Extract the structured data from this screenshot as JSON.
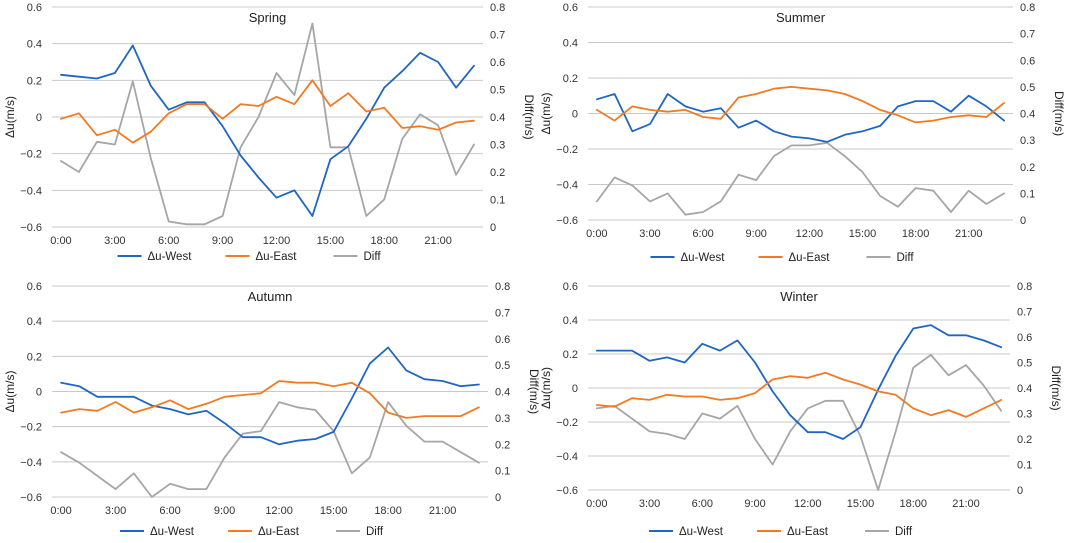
{
  "chart_data": [
    {
      "type": "line",
      "title": "Spring",
      "xlabel": "",
      "ylabel": "Δu(m/s)",
      "y2label": "Diff(m/s)",
      "x": [
        0,
        1,
        2,
        3,
        4,
        5,
        6,
        7,
        8,
        9,
        10,
        11,
        12,
        13,
        14,
        15,
        16,
        17,
        18,
        19,
        20,
        21,
        22,
        23
      ],
      "x_tick_labels": [
        "0:00",
        "3:00",
        "6:00",
        "9:00",
        "12:00",
        "15:00",
        "18:00",
        "21:00"
      ],
      "ylim": [
        -0.6,
        0.6
      ],
      "y_ticks": [
        "0.6",
        "0.4",
        "0.2",
        "0",
        "-0.2",
        "-0.4",
        "-0.6"
      ],
      "y2lim": [
        0,
        0.8
      ],
      "y2_ticks": [
        "0.8",
        "0.7",
        "0.6",
        "0.5",
        "0.4",
        "0.3",
        "0.2",
        "0.1",
        "0"
      ],
      "series": [
        {
          "name": "Δu-West",
          "axis": "left",
          "color": "#1f66c4",
          "values": [
            0.23,
            0.22,
            0.21,
            0.24,
            0.39,
            0.17,
            0.04,
            0.08,
            0.08,
            -0.05,
            -0.21,
            -0.33,
            -0.44,
            -0.4,
            -0.54,
            -0.23,
            -0.16,
            -0.01,
            0.16,
            0.25,
            0.35,
            0.3,
            0.16,
            0.28
          ]
        },
        {
          "name": "Δu-East",
          "axis": "left",
          "color": "#f27a22",
          "values": [
            -0.01,
            0.02,
            -0.1,
            -0.07,
            -0.14,
            -0.08,
            0.02,
            0.07,
            0.07,
            -0.01,
            0.07,
            0.06,
            0.11,
            0.07,
            0.2,
            0.06,
            0.13,
            0.03,
            0.05,
            -0.06,
            -0.05,
            -0.07,
            -0.03,
            -0.02
          ]
        },
        {
          "name": "Diff",
          "axis": "right",
          "color": "#a6a6a6",
          "values": [
            0.24,
            0.2,
            0.31,
            0.3,
            0.53,
            0.25,
            0.02,
            0.01,
            0.01,
            0.04,
            0.29,
            0.4,
            0.56,
            0.48,
            0.74,
            0.29,
            0.29,
            0.04,
            0.1,
            0.32,
            0.41,
            0.37,
            0.19,
            0.3
          ]
        }
      ],
      "legend": [
        "Δu-West",
        "Δu-East",
        "Diff"
      ],
      "legend_position": "bottom"
    },
    {
      "type": "line",
      "title": "Summer",
      "xlabel": "",
      "ylabel": "Δu(m/s)",
      "y2label": "Diff(m/s)",
      "x": [
        0,
        1,
        2,
        3,
        4,
        5,
        6,
        7,
        8,
        9,
        10,
        11,
        12,
        13,
        14,
        15,
        16,
        17,
        18,
        19,
        20,
        21,
        22,
        23
      ],
      "x_tick_labels": [
        "0:00",
        "3:00",
        "6:00",
        "9:00",
        "12:00",
        "15:00",
        "18:00",
        "21:00"
      ],
      "ylim": [
        -0.6,
        0.6
      ],
      "y_ticks": [
        "0.6",
        "0.4",
        "0.2",
        "0",
        "-0.2",
        "-0.4",
        "-0.6"
      ],
      "y2lim": [
        0,
        0.8
      ],
      "y2_ticks": [
        "0.8",
        "0.7",
        "0.6",
        "0.5",
        "0.4",
        "0.3",
        "0.2",
        "0.1",
        "0"
      ],
      "series": [
        {
          "name": "Δu-West",
          "axis": "left",
          "color": "#1f66c4",
          "values": [
            0.08,
            0.11,
            -0.1,
            -0.06,
            0.11,
            0.04,
            0.01,
            0.03,
            -0.08,
            -0.04,
            -0.1,
            -0.13,
            -0.14,
            -0.16,
            -0.12,
            -0.1,
            -0.07,
            0.04,
            0.07,
            0.07,
            0.01,
            0.1,
            0.04,
            -0.04
          ]
        },
        {
          "name": "Δu-East",
          "axis": "left",
          "color": "#f27a22",
          "values": [
            0.02,
            -0.04,
            0.04,
            0.02,
            0.01,
            0.02,
            -0.02,
            -0.03,
            0.09,
            0.11,
            0.14,
            0.15,
            0.14,
            0.13,
            0.11,
            0.07,
            0.02,
            -0.01,
            -0.05,
            -0.04,
            -0.02,
            -0.01,
            -0.02,
            0.06
          ]
        },
        {
          "name": "Diff",
          "axis": "right",
          "color": "#a6a6a6",
          "values": [
            0.07,
            0.16,
            0.13,
            0.07,
            0.1,
            0.02,
            0.03,
            0.07,
            0.17,
            0.15,
            0.24,
            0.28,
            0.28,
            0.29,
            0.24,
            0.18,
            0.09,
            0.05,
            0.12,
            0.11,
            0.03,
            0.11,
            0.06,
            0.1
          ]
        }
      ],
      "legend": [
        "Δu-West",
        "Δu-East",
        "Diff"
      ],
      "legend_position": "bottom"
    },
    {
      "type": "line",
      "title": "Autumn",
      "xlabel": "",
      "ylabel": "Δu(m/s)",
      "y2label": "Diff(m/s)",
      "x": [
        0,
        1,
        2,
        3,
        4,
        5,
        6,
        7,
        8,
        9,
        10,
        11,
        12,
        13,
        14,
        15,
        16,
        17,
        18,
        19,
        20,
        21,
        22,
        23
      ],
      "x_tick_labels": [
        "0:00",
        "3:00",
        "6:00",
        "9:00",
        "12:00",
        "15:00",
        "18:00",
        "21:00"
      ],
      "ylim": [
        -0.6,
        0.6
      ],
      "y_ticks": [
        "0.6",
        "0.4",
        "0.2",
        "0",
        "-0.2",
        "-0.4",
        "-0.6"
      ],
      "y2lim": [
        0,
        0.8
      ],
      "y2_ticks": [
        "0.8",
        "0.7",
        "0.6",
        "0.5",
        "0.4",
        "0.3",
        "0.2",
        "0.1",
        "0"
      ],
      "series": [
        {
          "name": "Δu-West",
          "axis": "left",
          "color": "#1f66c4",
          "values": [
            0.05,
            0.03,
            -0.03,
            -0.03,
            -0.03,
            -0.08,
            -0.1,
            -0.13,
            -0.11,
            -0.18,
            -0.26,
            -0.26,
            -0.3,
            -0.28,
            -0.27,
            -0.23,
            -0.04,
            0.16,
            0.25,
            0.12,
            0.07,
            0.06,
            0.03,
            0.04
          ]
        },
        {
          "name": "Δu-East",
          "axis": "left",
          "color": "#f27a22",
          "values": [
            -0.12,
            -0.1,
            -0.11,
            -0.06,
            -0.12,
            -0.09,
            -0.05,
            -0.1,
            -0.07,
            -0.03,
            -0.02,
            -0.01,
            0.06,
            0.05,
            0.05,
            0.03,
            0.05,
            -0.01,
            -0.12,
            -0.15,
            -0.14,
            -0.14,
            -0.14,
            -0.09
          ]
        },
        {
          "name": "Diff",
          "axis": "right",
          "color": "#a6a6a6",
          "values": [
            0.17,
            0.13,
            0.08,
            0.03,
            0.09,
            0.0,
            0.05,
            0.03,
            0.03,
            0.15,
            0.24,
            0.25,
            0.36,
            0.34,
            0.33,
            0.25,
            0.09,
            0.15,
            0.36,
            0.27,
            0.21,
            0.21,
            0.17,
            0.13
          ]
        }
      ],
      "legend": [
        "Δu-West",
        "Δu-East",
        "Diff"
      ],
      "legend_position": "bottom"
    },
    {
      "type": "line",
      "title": "Winter",
      "xlabel": "",
      "ylabel": "Δu(m/s)",
      "y2label": "Diff(m/s)",
      "x": [
        0,
        1,
        2,
        3,
        4,
        5,
        6,
        7,
        8,
        9,
        10,
        11,
        12,
        13,
        14,
        15,
        16,
        17,
        18,
        19,
        20,
        21,
        22,
        23
      ],
      "x_tick_labels": [
        "0:00",
        "3:00",
        "6:00",
        "9:00",
        "12:00",
        "15:00",
        "18:00",
        "21:00"
      ],
      "ylim": [
        -0.6,
        0.6
      ],
      "y_ticks": [
        "0.6",
        "0.4",
        "0.2",
        "0",
        "-0.2",
        "-0.4",
        "-0.6"
      ],
      "y2lim": [
        0,
        0.8
      ],
      "y2_ticks": [
        "0.8",
        "0.7",
        "0.6",
        "0.5",
        "0.4",
        "0.3",
        "0.2",
        "0.1",
        "0"
      ],
      "series": [
        {
          "name": "Δu-West",
          "axis": "left",
          "color": "#1f66c4",
          "values": [
            0.22,
            0.22,
            0.22,
            0.16,
            0.18,
            0.15,
            0.26,
            0.22,
            0.28,
            0.15,
            -0.02,
            -0.16,
            -0.26,
            -0.26,
            -0.3,
            -0.23,
            -0.01,
            0.19,
            0.35,
            0.37,
            0.31,
            0.31,
            0.28,
            0.24
          ]
        },
        {
          "name": "Δu-East",
          "axis": "left",
          "color": "#f27a22",
          "values": [
            -0.1,
            -0.11,
            -0.06,
            -0.07,
            -0.04,
            -0.05,
            -0.05,
            -0.07,
            -0.06,
            -0.03,
            0.05,
            0.07,
            0.06,
            0.09,
            0.05,
            0.02,
            -0.02,
            -0.04,
            -0.12,
            -0.16,
            -0.13,
            -0.17,
            -0.12,
            -0.07
          ]
        },
        {
          "name": "Diff",
          "axis": "right",
          "color": "#a6a6a6",
          "values": [
            0.32,
            0.33,
            0.28,
            0.23,
            0.22,
            0.2,
            0.3,
            0.28,
            0.33,
            0.2,
            0.1,
            0.23,
            0.32,
            0.35,
            0.35,
            0.21,
            0.0,
            0.23,
            0.48,
            0.53,
            0.45,
            0.49,
            0.41,
            0.31
          ]
        }
      ],
      "legend": [
        "Δu-West",
        "Δu-East",
        "Diff"
      ],
      "legend_position": "bottom"
    }
  ]
}
